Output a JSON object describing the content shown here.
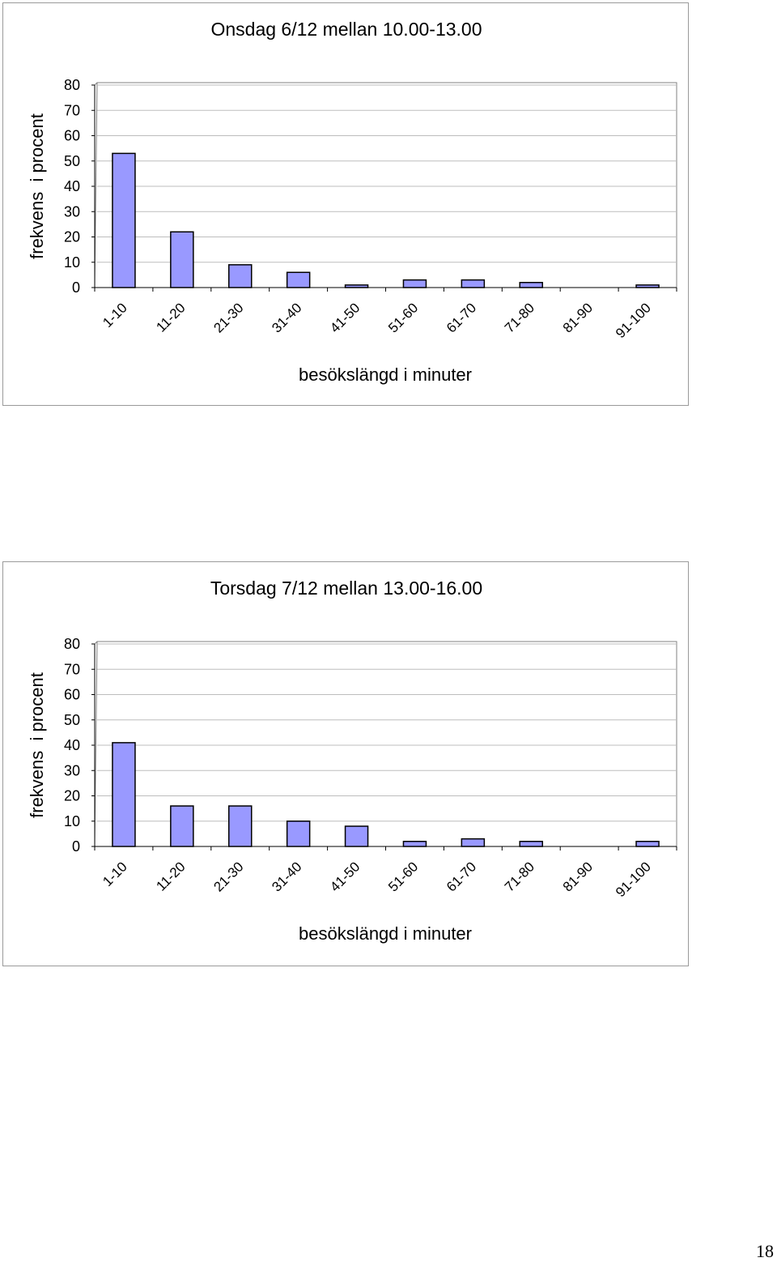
{
  "page_number": "18",
  "colors": {
    "bar_fill": "#9999FF",
    "bar_stroke": "#000000",
    "grid": "#bdbdbd",
    "frame": "#808080"
  },
  "chart_data": [
    {
      "type": "bar",
      "title": "Onsdag 6/12 mellan 10.00-13.00",
      "xlabel": "besökslängd i minuter",
      "ylabel": "frekvens  i procent",
      "categories": [
        "1-10",
        "11-20",
        "21-30",
        "31-40",
        "41-50",
        "51-60",
        "61-70",
        "71-80",
        "81-90",
        "91-100"
      ],
      "values": [
        53,
        22,
        9,
        6,
        1,
        3,
        3,
        2,
        0,
        1
      ],
      "ylim": [
        0,
        80
      ],
      "yticks": [
        0,
        10,
        20,
        30,
        40,
        50,
        60,
        70,
        80
      ],
      "grid": true,
      "legend": "none"
    },
    {
      "type": "bar",
      "title": "Torsdag 7/12 mellan 13.00-16.00",
      "xlabel": "besökslängd i minuter",
      "ylabel": "frekvens  i procent",
      "categories": [
        "1-10",
        "11-20",
        "21-30",
        "31-40",
        "41-50",
        "51-60",
        "61-70",
        "71-80",
        "81-90",
        "91-100"
      ],
      "values": [
        41,
        16,
        16,
        10,
        8,
        2,
        3,
        2,
        0,
        2
      ],
      "ylim": [
        0,
        80
      ],
      "yticks": [
        0,
        10,
        20,
        30,
        40,
        50,
        60,
        70,
        80
      ],
      "grid": true,
      "legend": "none"
    }
  ]
}
